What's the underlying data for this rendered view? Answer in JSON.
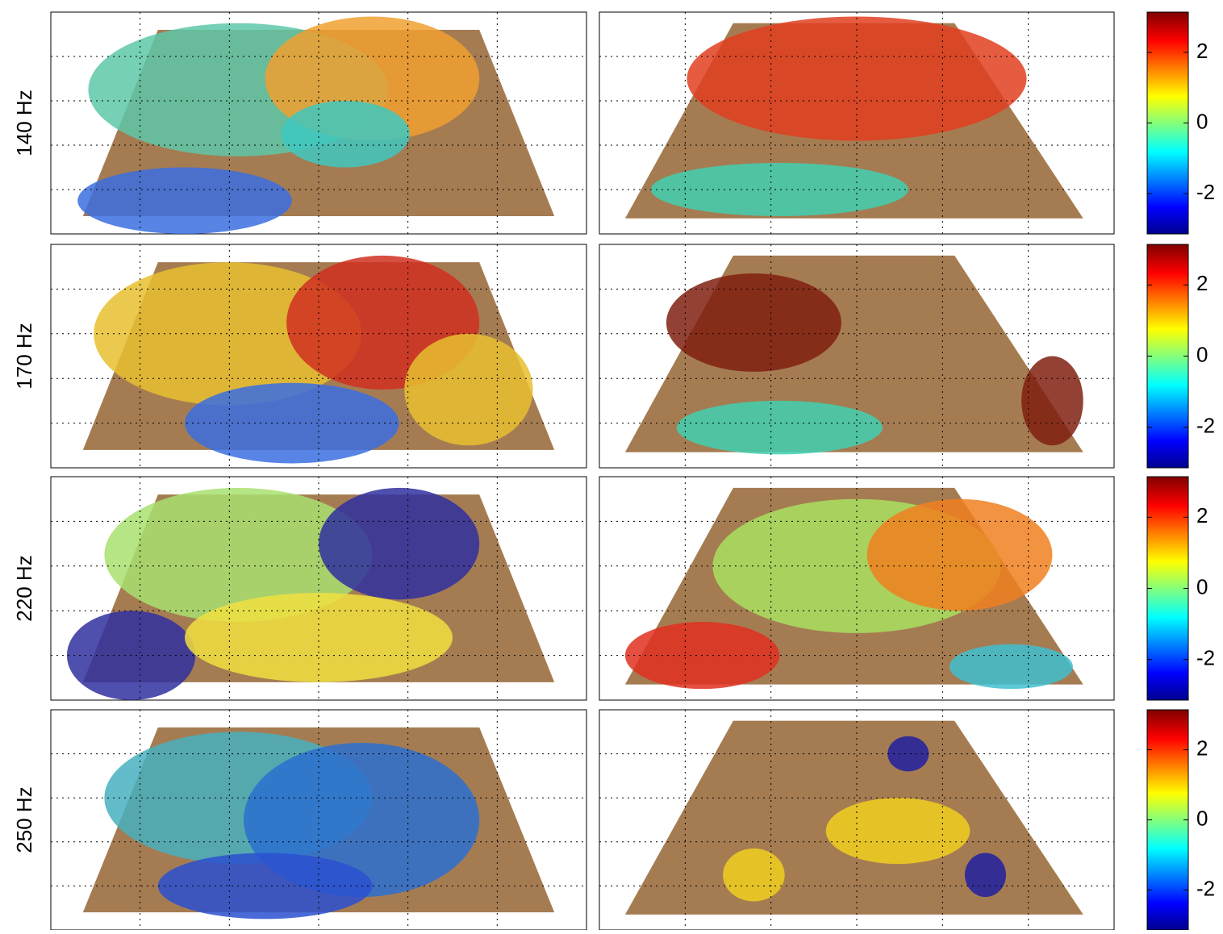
{
  "rows": [
    {
      "label": "140 Hz"
    },
    {
      "label": "170 Hz"
    },
    {
      "label": "220 Hz"
    },
    {
      "label": "250 Hz"
    }
  ],
  "colorbar": {
    "lim": [
      -3.14,
      3.14
    ],
    "ticks": [
      2,
      0,
      -2
    ]
  }
}
